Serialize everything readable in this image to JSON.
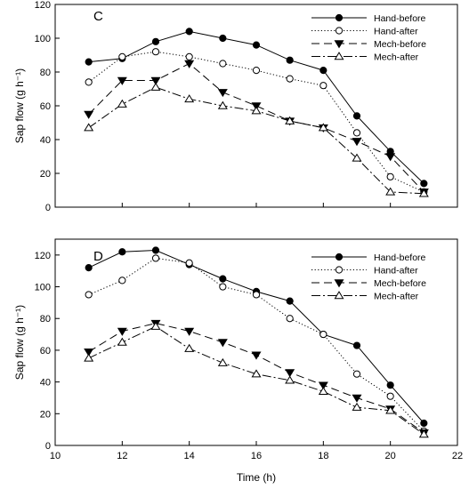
{
  "chart_data": [
    {
      "type": "line",
      "panel_label": "C",
      "ylabel": "Sap flow (g h⁻¹)",
      "xlabel": "",
      "xlim": [
        10,
        22
      ],
      "ylim": [
        0,
        120
      ],
      "x_ticks": [
        "10",
        "12",
        "14",
        "16",
        "18",
        "20",
        "22"
      ],
      "y_ticks": [
        "0",
        "20",
        "40",
        "60",
        "80",
        "100",
        "120"
      ],
      "x_tick_labels_shown": false,
      "grid": false,
      "legend_position": "top-right",
      "x": [
        11,
        12,
        13,
        14,
        15,
        16,
        17,
        18,
        19,
        20,
        21
      ],
      "series": [
        {
          "name": "Hand-before",
          "values": [
            86,
            88,
            98,
            104,
            100,
            96,
            87,
            81,
            54,
            33,
            14
          ],
          "line": "solid",
          "marker": "circle-filled"
        },
        {
          "name": "Hand-after",
          "values": [
            74,
            89,
            92,
            89,
            85,
            81,
            76,
            72,
            44,
            18,
            9
          ],
          "line": "dotted",
          "marker": "circle-open"
        },
        {
          "name": "Mech-before",
          "values": [
            55,
            75,
            75,
            85,
            68,
            60,
            51,
            47,
            39,
            30,
            9
          ],
          "line": "dashed",
          "marker": "triangle-down-filled"
        },
        {
          "name": "Mech-after",
          "values": [
            47,
            61,
            71,
            64,
            60,
            57,
            51,
            47,
            29,
            9,
            8
          ],
          "line": "dashdot",
          "marker": "triangle-up-open"
        }
      ]
    },
    {
      "type": "line",
      "panel_label": "D",
      "ylabel": "Sap flow (g h⁻¹)",
      "xlabel": "Time (h)",
      "xlim": [
        10,
        22
      ],
      "ylim": [
        0,
        130
      ],
      "x_ticks": [
        "10",
        "12",
        "14",
        "16",
        "18",
        "20",
        "22"
      ],
      "y_ticks": [
        "0",
        "20",
        "40",
        "60",
        "80",
        "100",
        "120"
      ],
      "x_tick_labels_shown": true,
      "grid": false,
      "legend_position": "top-right",
      "x": [
        11,
        12,
        13,
        14,
        15,
        16,
        17,
        18,
        19,
        20,
        21
      ],
      "series": [
        {
          "name": "Hand-before",
          "values": [
            112,
            122,
            123,
            114,
            105,
            97,
            91,
            70,
            63,
            38,
            14
          ],
          "line": "solid",
          "marker": "circle-filled"
        },
        {
          "name": "Hand-after",
          "values": [
            95,
            104,
            118,
            115,
            100,
            95,
            80,
            70,
            45,
            31,
            9
          ],
          "line": "dotted",
          "marker": "circle-open"
        },
        {
          "name": "Mech-before",
          "values": [
            59,
            72,
            77,
            72,
            65,
            57,
            46,
            38,
            30,
            23,
            8
          ],
          "line": "dashed",
          "marker": "triangle-down-filled"
        },
        {
          "name": "Mech-after",
          "values": [
            55,
            65,
            75,
            61,
            52,
            45,
            41,
            34,
            24,
            22,
            7
          ],
          "line": "dashdot",
          "marker": "triangle-up-open"
        }
      ]
    }
  ]
}
